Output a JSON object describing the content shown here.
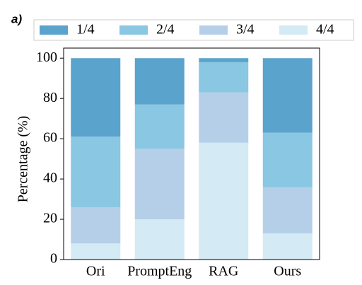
{
  "panel_label": "a)",
  "chart_data": {
    "type": "stacked-bar",
    "ylabel": "Percentage (%)",
    "categories": [
      "Ori",
      "PromptEng",
      "RAG",
      "Ours"
    ],
    "series": [
      {
        "name": "4/4",
        "color": "#d4eaf4",
        "values": [
          8,
          20,
          58,
          13
        ]
      },
      {
        "name": "3/4",
        "color": "#b5cfe8",
        "values": [
          18,
          35,
          25,
          23
        ]
      },
      {
        "name": "2/4",
        "color": "#89c7e3",
        "values": [
          35,
          22,
          15,
          27
        ]
      },
      {
        "name": "1/4",
        "color": "#5aa3cd",
        "values": [
          39,
          23,
          2,
          37
        ]
      }
    ],
    "legend_order": [
      "1/4",
      "2/4",
      "3/4",
      "4/4"
    ],
    "ylim": [
      0,
      105
    ],
    "yticks": [
      0,
      20,
      40,
      60,
      80,
      100
    ]
  }
}
